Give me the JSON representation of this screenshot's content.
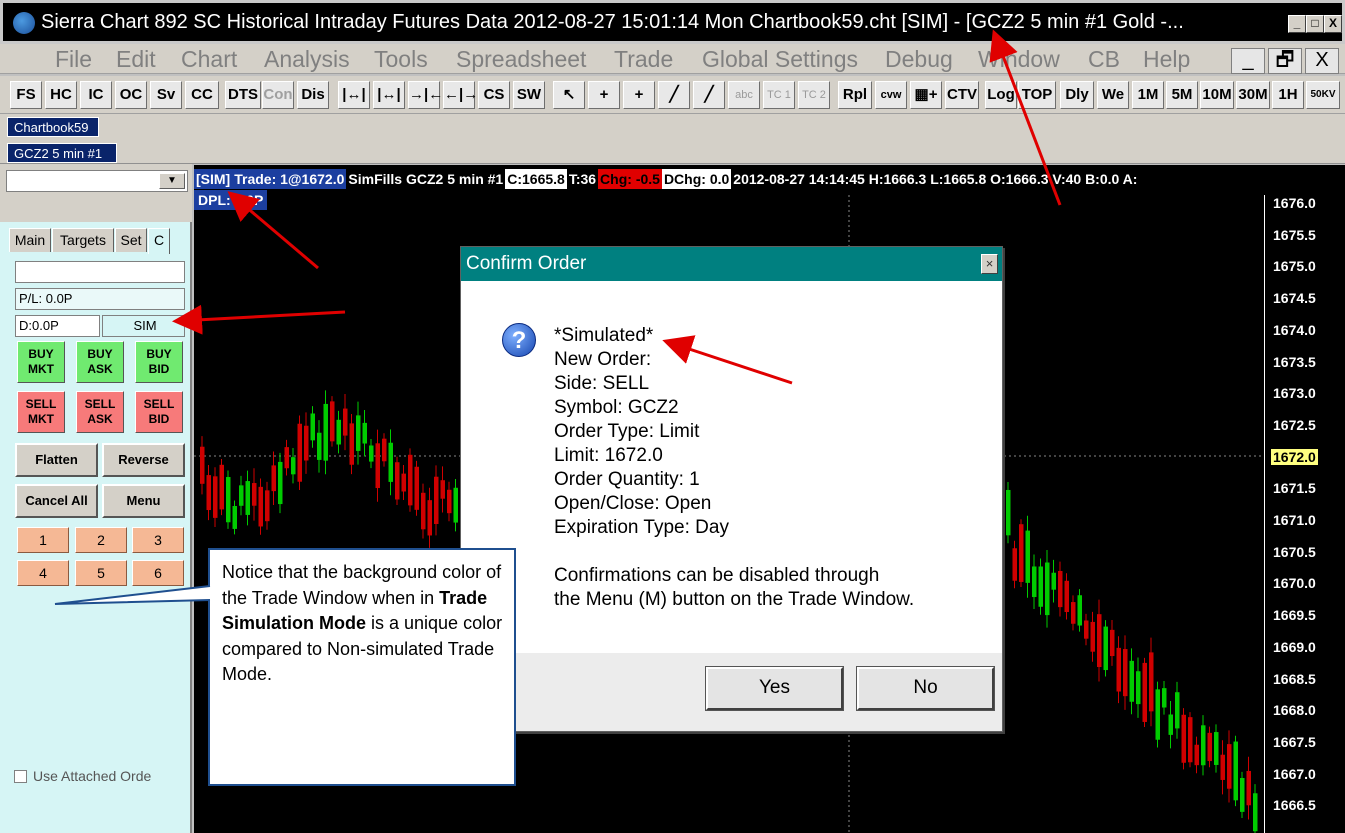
{
  "window": {
    "title": "Sierra Chart 892 SC Historical Intraday Futures Data 2012-08-27  15:01:14 Mon  Chartbook59.cht [SIM] - [GCZ2  5 min  #1  Gold -...",
    "min": "_",
    "max": "□",
    "close": "X"
  },
  "menu": [
    "File",
    "Edit",
    "Chart",
    "Analysis",
    "Tools",
    "Spreadsheet",
    "Trade",
    "Global Settings",
    "Debug",
    "Window",
    "CB",
    "Help"
  ],
  "mdi_buttons": {
    "min": "_",
    "restore": "🗗",
    "close": "X"
  },
  "toolbar": [
    "FS",
    "HC",
    "IC",
    "OC",
    "Sv",
    "CC",
    "DTS",
    "Con",
    "Dis",
    "|↔|",
    "|↔|",
    "→|←",
    "←|→",
    "CS",
    "SW",
    "↖",
    "+",
    "+",
    "╱",
    "╱",
    "abc",
    "TC 1",
    "TC 2",
    "Rpl",
    "cvw",
    "▦+",
    "CTV",
    "Log",
    "TOP",
    "Dly",
    "We",
    "1M",
    "5M",
    "10M",
    "30M",
    "1H",
    "50KV"
  ],
  "tabs": {
    "chartbook": "Chartbook59",
    "chart": "GCZ2  5 min  #1"
  },
  "trade_window": {
    "dropdown_value": "",
    "tabs": [
      "Main",
      "Targets",
      "Set",
      "C"
    ],
    "field_blank": "",
    "pl": "P/L: 0.0P",
    "d": "D:0.0P",
    "mode": "SIM",
    "buy_buttons": [
      "BUY\nMKT",
      "BUY\nASK",
      "BUY\nBID"
    ],
    "sell_buttons": [
      "SELL\nMKT",
      "SELL\nASK",
      "SELL\nBID"
    ],
    "flatten": "Flatten",
    "reverse": "Reverse",
    "cancel_all": "Cancel All",
    "menu": "Menu",
    "numbers": [
      "1",
      "2",
      "3",
      "4",
      "5",
      "6"
    ],
    "attached_orders": "Use Attached Orde"
  },
  "chart": {
    "header": [
      {
        "text": "[SIM]",
        "bg": "#1c3fa0",
        "fg": "#ffffff"
      },
      {
        "text": "Trade: 1@1672.0",
        "bg": "#1c3fa0",
        "fg": "#ffffff"
      },
      {
        "text": "SimFills GCZ2  5 min   #1",
        "bg": "#000000",
        "fg": "#ffffff"
      },
      {
        "text": "C:1665.8",
        "bg": "#ffffff",
        "fg": "#000000"
      },
      {
        "text": "T:36",
        "bg": "#000000",
        "fg": "#ffffff"
      },
      {
        "text": "Chg: -0.5",
        "bg": "#e00000",
        "fg": "#000000"
      },
      {
        "text": "DChg: 0.0",
        "bg": "#ffffff",
        "fg": "#000000"
      },
      {
        "text": "2012-08-27 14:14:45 H:1666.3 L:1665.8 O:1666.3 V:40 B:0.0 A:",
        "bg": "#000000",
        "fg": "#ffffff"
      }
    ],
    "dpl": "DPL: 0.0P",
    "price_ticks": [
      "1676.0",
      "1675.5",
      "1675.0",
      "1674.5",
      "1674.0",
      "1673.5",
      "1673.0",
      "1672.5",
      "1672.0",
      "1671.5",
      "1671.0",
      "1670.5",
      "1670.0",
      "1669.5",
      "1669.0",
      "1668.5",
      "1668.0",
      "1667.5",
      "1667.0",
      "1666.5"
    ],
    "highlight_price": "1672.0",
    "up_color": "#00cc00",
    "down_color": "#d00000"
  },
  "dialog": {
    "title": "Confirm Order",
    "close": "×",
    "icon": "question-icon",
    "lines": [
      "*Simulated*",
      "New Order:",
      "Side: SELL",
      "Symbol: GCZ2",
      "Order Type: Limit",
      "Limit: 1672.0",
      "Order Quantity: 1",
      "Open/Close: Open",
      "Expiration Type: Day",
      "",
      "Confirmations can be disabled through",
      "the Menu (M) button on the Trade Window."
    ],
    "yes": "Yes",
    "no": "No"
  },
  "callout": {
    "text_1": "Notice that the background color of the Trade Window when in ",
    "text_bold": "Trade Simulation Mode",
    "text_2": " is a unique color compared to Non-simulated Trade Mode."
  }
}
